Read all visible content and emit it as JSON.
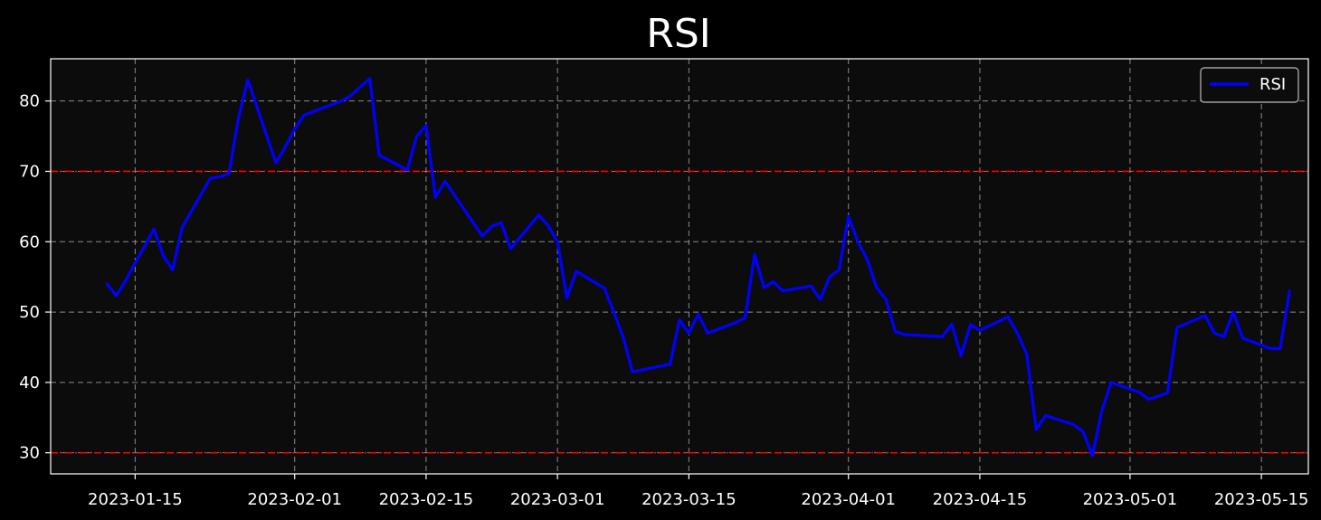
{
  "chart_data": {
    "type": "line",
    "title": "RSI",
    "xlabel": "",
    "ylabel": "",
    "ylim": [
      27.0,
      86.0
    ],
    "xlim": [
      "2023-01-06",
      "2023-05-20"
    ],
    "x_ticks": [
      "2023-01-15",
      "2023-02-01",
      "2023-02-15",
      "2023-03-01",
      "2023-03-15",
      "2023-04-01",
      "2023-04-15",
      "2023-05-01",
      "2023-05-15"
    ],
    "y_ticks": [
      30,
      40,
      50,
      60,
      70,
      80
    ],
    "grid": true,
    "legend_position": "top-right",
    "reference_lines": [
      {
        "value": 70,
        "color": "#ff0000",
        "style": "dashed"
      },
      {
        "value": 30,
        "color": "#ff0000",
        "style": "dashed"
      }
    ],
    "colors": {
      "background": "#000000",
      "plot_background": "#0c0c0c",
      "series": "#0000ff",
      "grid": "#aaaaaa"
    },
    "series": [
      {
        "name": "RSI",
        "points": [
          [
            "2023-01-12",
            54.0
          ],
          [
            "2023-01-13",
            52.3
          ],
          [
            "2023-01-14",
            54.5
          ],
          [
            "2023-01-15",
            57.0
          ],
          [
            "2023-01-16",
            59.3
          ],
          [
            "2023-01-17",
            61.8
          ],
          [
            "2023-01-18",
            58.0
          ],
          [
            "2023-01-19",
            56.0
          ],
          [
            "2023-01-20",
            62.0
          ],
          [
            "2023-01-23",
            69.0
          ],
          [
            "2023-01-24",
            69.2
          ],
          [
            "2023-01-25",
            69.7
          ],
          [
            "2023-01-26",
            77.5
          ],
          [
            "2023-01-27",
            83.0
          ],
          [
            "2023-01-30",
            71.2
          ],
          [
            "2023-01-31",
            73.5
          ],
          [
            "2023-02-01",
            76.0
          ],
          [
            "2023-02-02",
            78.0
          ],
          [
            "2023-02-06",
            80.0
          ],
          [
            "2023-02-07",
            80.8
          ],
          [
            "2023-02-08",
            82.0
          ],
          [
            "2023-02-09",
            83.2
          ],
          [
            "2023-02-10",
            72.3
          ],
          [
            "2023-02-13",
            70.2
          ],
          [
            "2023-02-14",
            75.0
          ],
          [
            "2023-02-15",
            76.5
          ],
          [
            "2023-02-16",
            66.3
          ],
          [
            "2023-02-17",
            68.6
          ],
          [
            "2023-02-21",
            60.8
          ],
          [
            "2023-02-22",
            62.2
          ],
          [
            "2023-02-23",
            62.7
          ],
          [
            "2023-02-24",
            59.0
          ],
          [
            "2023-02-27",
            63.8
          ],
          [
            "2023-02-28",
            62.3
          ],
          [
            "2023-03-01",
            60.0
          ],
          [
            "2023-03-02",
            52.0
          ],
          [
            "2023-03-03",
            55.8
          ],
          [
            "2023-03-06",
            53.4
          ],
          [
            "2023-03-07",
            50.0
          ],
          [
            "2023-03-08",
            46.4
          ],
          [
            "2023-03-09",
            41.5
          ],
          [
            "2023-03-13",
            42.6
          ],
          [
            "2023-03-14",
            48.9
          ],
          [
            "2023-03-15",
            47.0
          ],
          [
            "2023-03-16",
            49.7
          ],
          [
            "2023-03-17",
            47.0
          ],
          [
            "2023-03-20",
            48.5
          ],
          [
            "2023-03-21",
            49.2
          ],
          [
            "2023-03-22",
            58.2
          ],
          [
            "2023-03-23",
            53.5
          ],
          [
            "2023-03-24",
            54.3
          ],
          [
            "2023-03-25",
            53.0
          ],
          [
            "2023-03-28",
            53.7
          ],
          [
            "2023-03-29",
            51.8
          ],
          [
            "2023-03-30",
            55.0
          ],
          [
            "2023-03-31",
            56.0
          ],
          [
            "2023-04-01",
            63.6
          ],
          [
            "2023-04-02",
            60.0
          ],
          [
            "2023-04-03",
            57.5
          ],
          [
            "2023-04-04",
            53.5
          ],
          [
            "2023-04-05",
            51.8
          ],
          [
            "2023-04-06",
            47.2
          ],
          [
            "2023-04-07",
            46.8
          ],
          [
            "2023-04-11",
            46.5
          ],
          [
            "2023-04-12",
            48.3
          ],
          [
            "2023-04-13",
            43.8
          ],
          [
            "2023-04-14",
            48.2
          ],
          [
            "2023-04-15",
            47.4
          ],
          [
            "2023-04-18",
            49.3
          ],
          [
            "2023-04-19",
            47.0
          ],
          [
            "2023-04-20",
            44.0
          ],
          [
            "2023-04-21",
            33.3
          ],
          [
            "2023-04-22",
            35.3
          ],
          [
            "2023-04-25",
            34.0
          ],
          [
            "2023-04-26",
            33.0
          ],
          [
            "2023-04-27",
            29.6
          ],
          [
            "2023-04-28",
            36.0
          ],
          [
            "2023-04-29",
            40.0
          ],
          [
            "2023-05-02",
            38.6
          ],
          [
            "2023-05-03",
            37.6
          ],
          [
            "2023-05-05",
            38.5
          ],
          [
            "2023-05-06",
            47.8
          ],
          [
            "2023-05-09",
            49.5
          ],
          [
            "2023-05-10",
            47.0
          ],
          [
            "2023-05-11",
            46.5
          ],
          [
            "2023-05-12",
            50.0
          ],
          [
            "2023-05-13",
            46.3
          ],
          [
            "2023-05-16",
            44.8
          ],
          [
            "2023-05-17",
            44.8
          ],
          [
            "2023-05-18",
            53.0
          ]
        ]
      }
    ]
  }
}
